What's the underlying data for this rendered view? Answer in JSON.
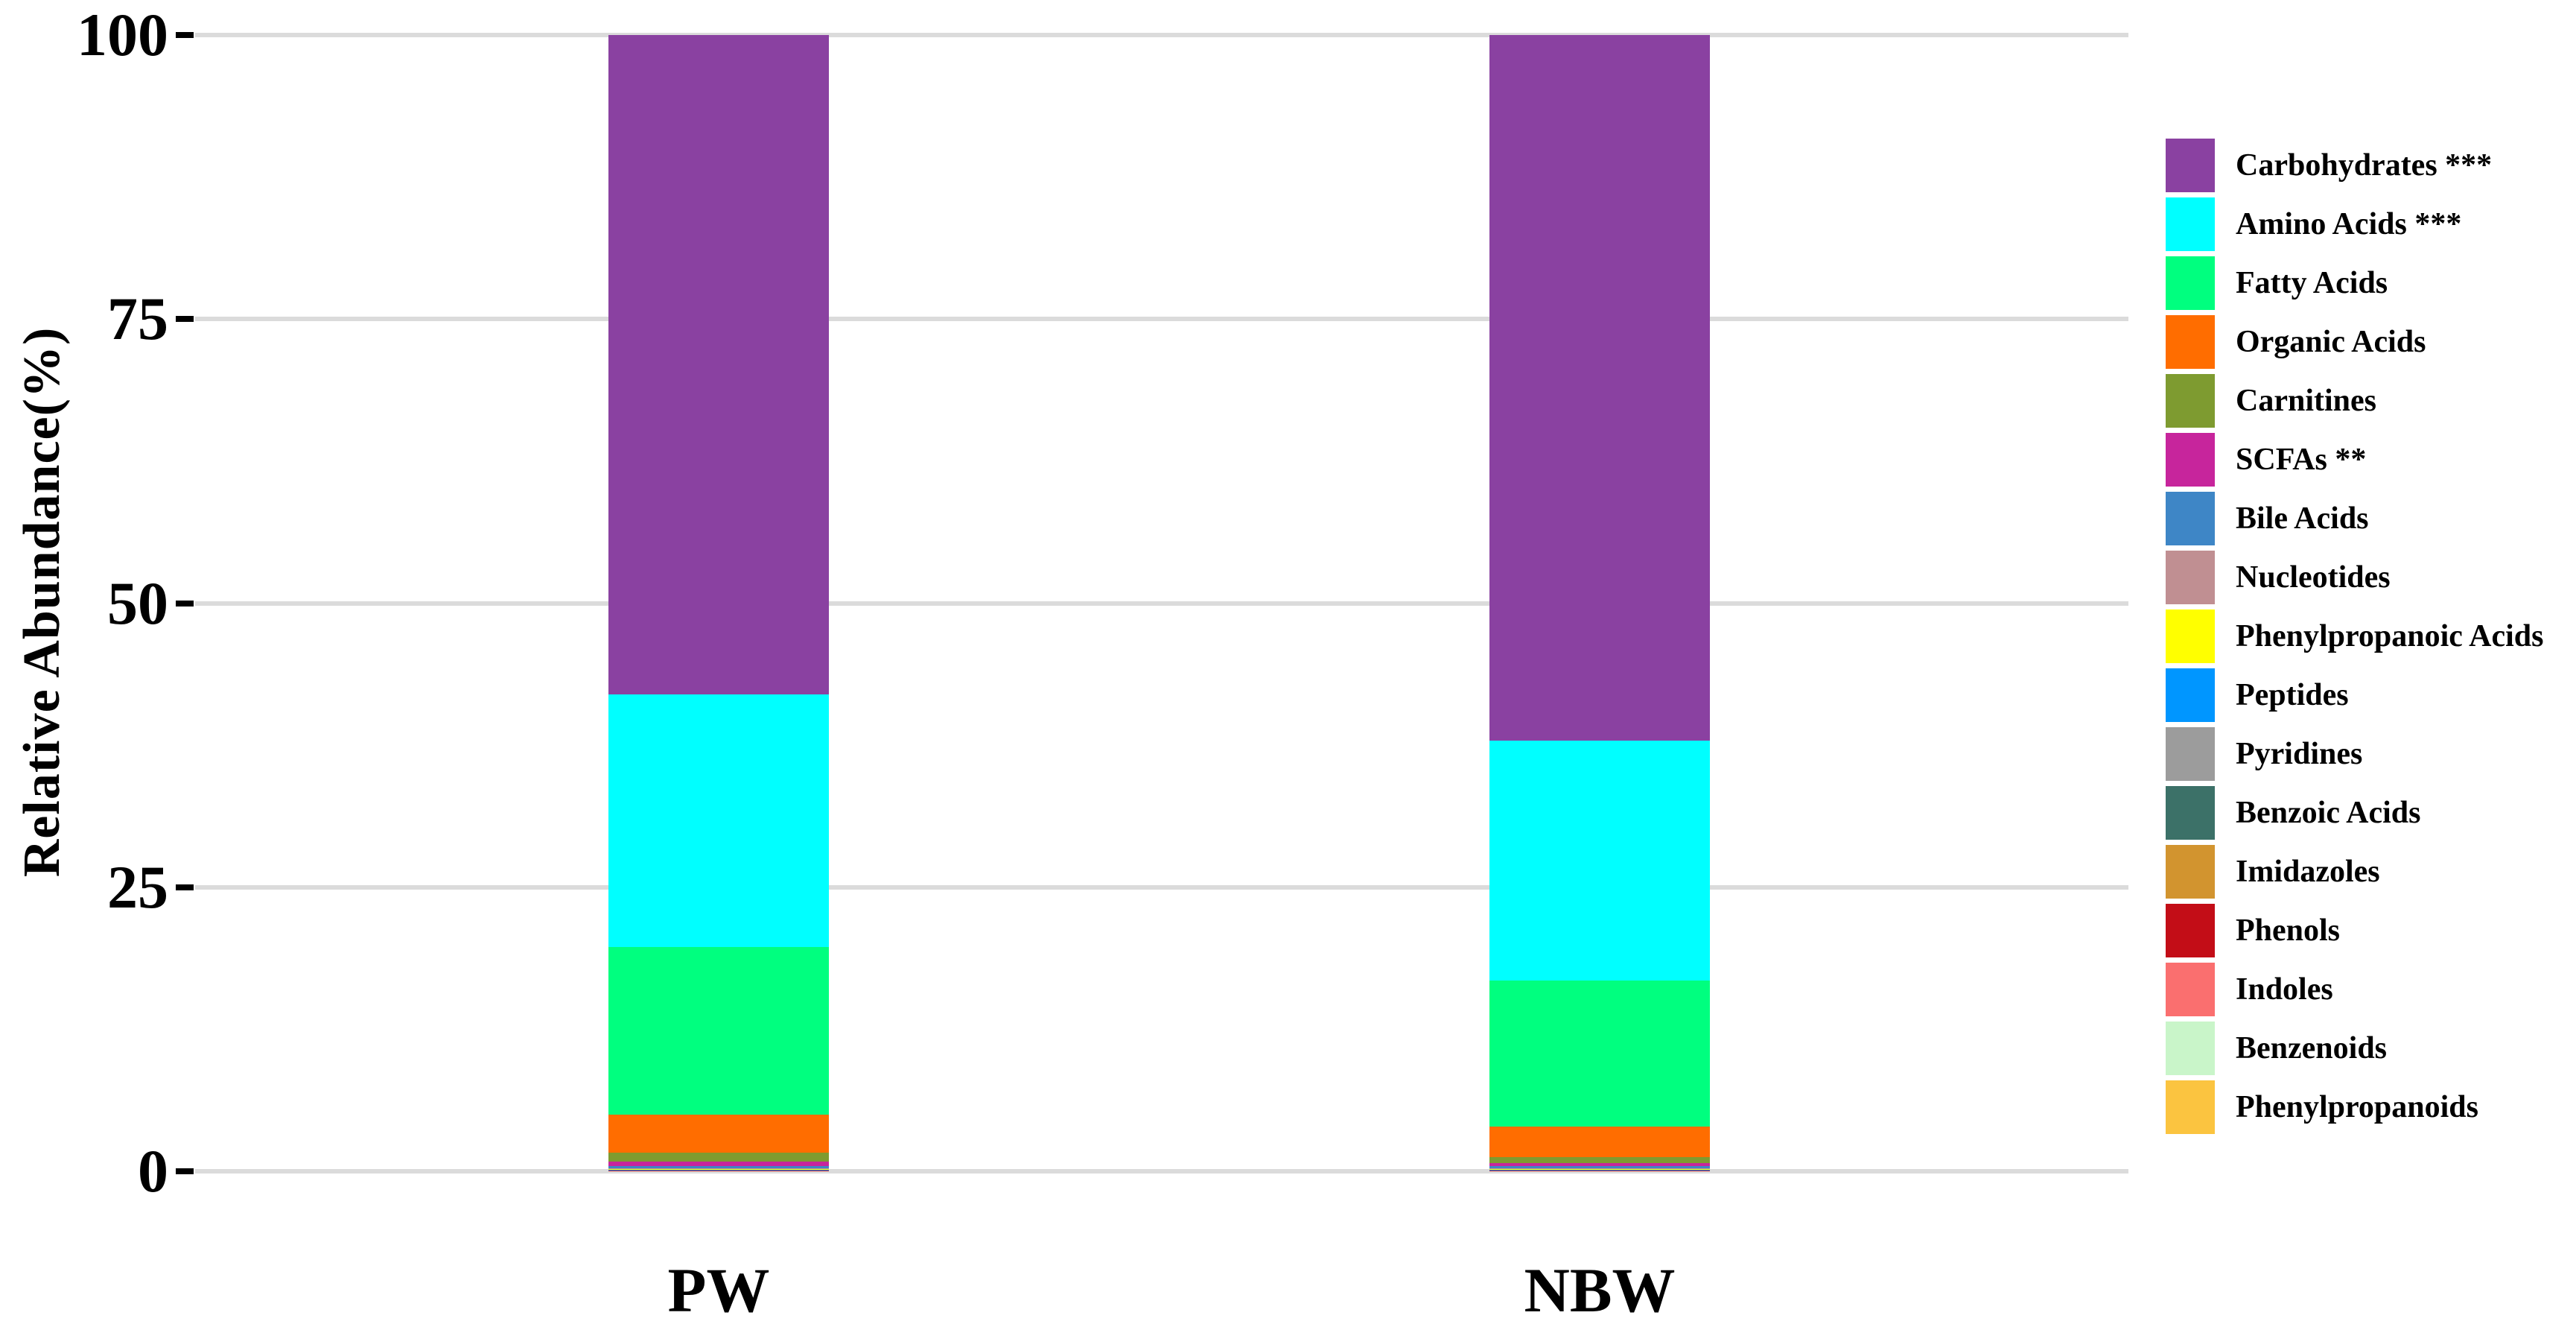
{
  "y_axis": {
    "title": "Relative Abundance(%)",
    "tick_labels": [
      "0",
      "25",
      "50",
      "75",
      "100"
    ]
  },
  "x_axis": {
    "categories": [
      "PW",
      "NBW"
    ]
  },
  "chart_data": {
    "type": "bar",
    "stacked": true,
    "percent_stacked": true,
    "categories": [
      "PW",
      "NBW"
    ],
    "ylabel": "Relative Abundance(%)",
    "ylim": [
      0,
      100
    ],
    "yticks": [
      0,
      25,
      50,
      75,
      100
    ],
    "grid": true,
    "legend_position": "right",
    "series": [
      {
        "name": "Carbohydrates ***",
        "color": "#8A41A1",
        "values": [
          58.1,
          62.2
        ]
      },
      {
        "name": "Amino Acids ***",
        "color": "#00FFFF",
        "values": [
          22.3,
          21.1
        ]
      },
      {
        "name": "Fatty Acids",
        "color": "#00FF7F",
        "values": [
          14.8,
          12.9
        ]
      },
      {
        "name": "Organic Acids",
        "color": "#FF6D00",
        "values": [
          3.3,
          2.7
        ]
      },
      {
        "name": "Carnitines",
        "color": "#7E9B30",
        "values": [
          0.8,
          0.5
        ]
      },
      {
        "name": "SCFAs **",
        "color": "#C7259C",
        "values": [
          0.4,
          0.3
        ]
      },
      {
        "name": "Bile Acids",
        "color": "#3E86C6",
        "values": [
          0.2,
          0.2
        ]
      },
      {
        "name": "Nucleotides",
        "color": "#C08F92",
        "values": [
          0.02,
          0.02
        ]
      },
      {
        "name": "Phenylpropanoic Acids",
        "color": "#FFFF00",
        "values": [
          0.08,
          0.07
        ]
      },
      {
        "name": "Peptides",
        "color": "#0096FF",
        "values": [
          0.02,
          0.02
        ]
      },
      {
        "name": "Pyridines",
        "color": "#9C9C9C",
        "values": [
          0.02,
          0.02
        ]
      },
      {
        "name": "Benzoic Acids",
        "color": "#3C7168",
        "values": [
          0.01,
          0.01
        ]
      },
      {
        "name": "Imidazoles",
        "color": "#D2942F",
        "values": [
          0.02,
          0.02
        ]
      },
      {
        "name": "Phenols",
        "color": "#C30D17",
        "values": [
          0.01,
          0.01
        ]
      },
      {
        "name": "Indoles",
        "color": "#FA6F6F",
        "values": [
          0.01,
          0.01
        ]
      },
      {
        "name": "Benzenoids",
        "color": "#C9F5C9",
        "values": [
          0.01,
          0.01
        ]
      },
      {
        "name": "Phenylpropanoids",
        "color": "#FBC440",
        "values": [
          0.06,
          0.05
        ]
      }
    ]
  }
}
